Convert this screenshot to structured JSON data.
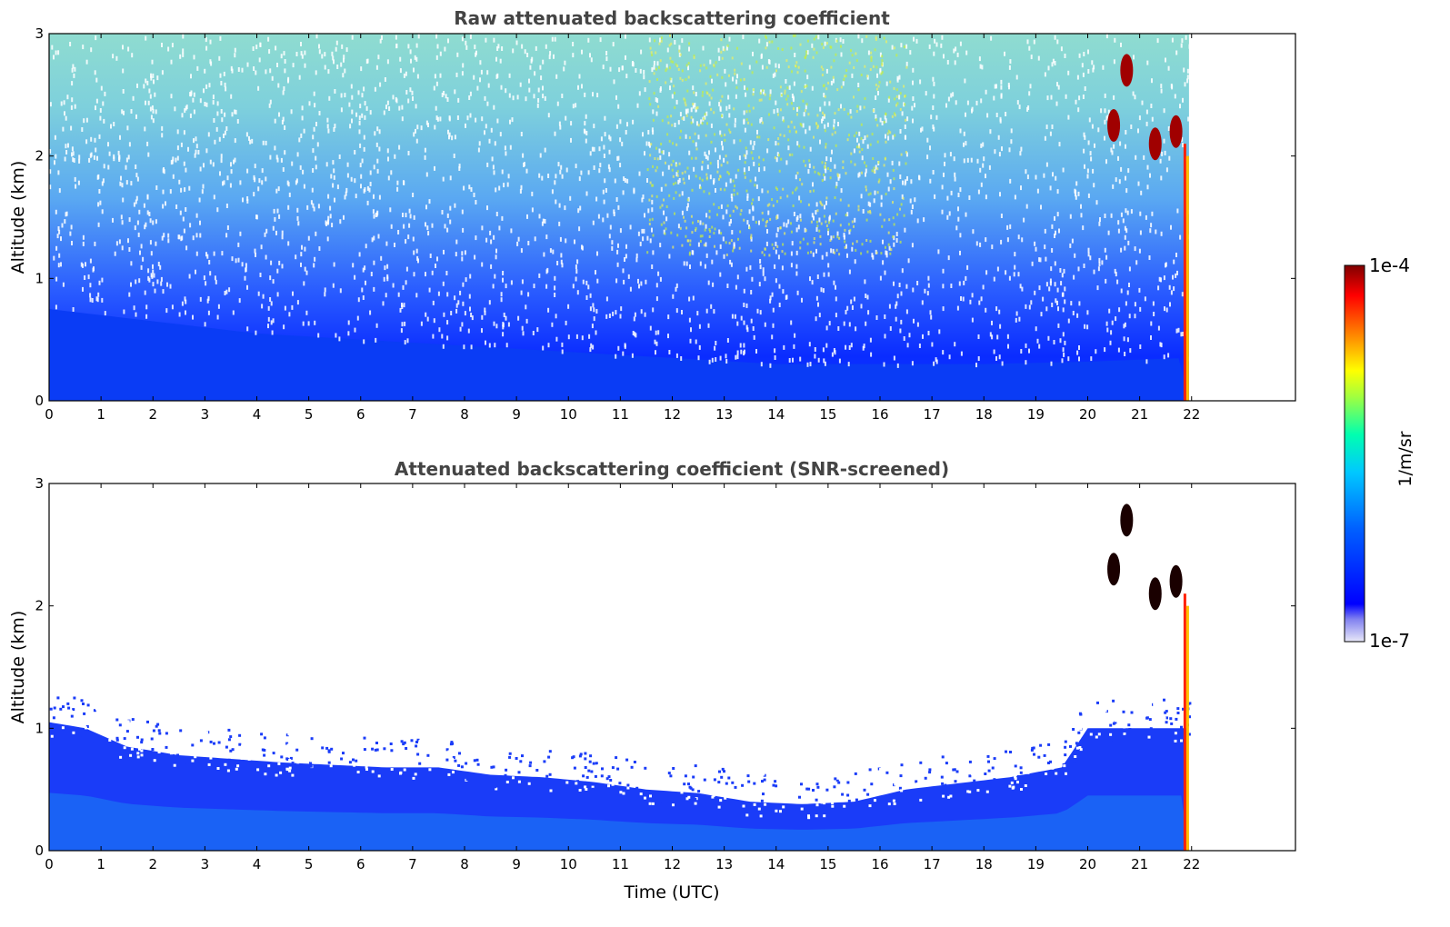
{
  "chart_data": [
    {
      "type": "heatmap",
      "title": "Raw attenuated backscattering coefficient",
      "xlabel": "",
      "ylabel": "Altitude (km)",
      "xlim": [
        0,
        24
      ],
      "ylim": [
        0,
        3
      ],
      "x_ticks": [
        "0",
        "1",
        "2",
        "3",
        "4",
        "5",
        "6",
        "7",
        "8",
        "9",
        "10",
        "11",
        "12",
        "13",
        "14",
        "15",
        "16",
        "17",
        "18",
        "19",
        "20",
        "21",
        "22"
      ],
      "y_ticks": [
        "0",
        "1",
        "2",
        "3"
      ],
      "data_end_time": 21.95,
      "boundary_layer_top": [
        {
          "x": 0,
          "y": 0.75
        },
        {
          "x": 2,
          "y": 0.65
        },
        {
          "x": 4,
          "y": 0.55
        },
        {
          "x": 6,
          "y": 0.5
        },
        {
          "x": 8,
          "y": 0.45
        },
        {
          "x": 10,
          "y": 0.4
        },
        {
          "x": 12,
          "y": 0.35
        },
        {
          "x": 14,
          "y": 0.3
        },
        {
          "x": 16,
          "y": 0.3
        },
        {
          "x": 18,
          "y": 0.3
        },
        {
          "x": 20,
          "y": 0.32
        },
        {
          "x": 21.9,
          "y": 0.35
        }
      ],
      "clouds": [
        {
          "x": 20.75,
          "y": 2.7,
          "level": 1.0
        },
        {
          "x": 20.5,
          "y": 2.25,
          "level": 1.0
        },
        {
          "x": 21.3,
          "y": 2.1,
          "level": 1.0
        },
        {
          "x": 21.7,
          "y": 2.2,
          "level": 0.95
        }
      ]
    },
    {
      "type": "heatmap",
      "title": "Attenuated backscattering coefficient (SNR-screened)",
      "xlabel": "Time (UTC)",
      "ylabel": "Altitude (km)",
      "xlim": [
        0,
        24
      ],
      "ylim": [
        0,
        3
      ],
      "x_ticks": [
        "0",
        "1",
        "2",
        "3",
        "4",
        "5",
        "6",
        "7",
        "8",
        "9",
        "10",
        "11",
        "12",
        "13",
        "14",
        "15",
        "16",
        "17",
        "18",
        "19",
        "20",
        "21",
        "22"
      ],
      "y_ticks": [
        "0",
        "1",
        "2",
        "3"
      ],
      "data_end_time": 21.95,
      "screened_signal_top": [
        {
          "x": 0,
          "y": 1.05
        },
        {
          "x": 0.7,
          "y": 1.0
        },
        {
          "x": 1.5,
          "y": 0.85
        },
        {
          "x": 2.5,
          "y": 0.78
        },
        {
          "x": 3.5,
          "y": 0.75
        },
        {
          "x": 4.5,
          "y": 0.72
        },
        {
          "x": 5.5,
          "y": 0.7
        },
        {
          "x": 6.5,
          "y": 0.68
        },
        {
          "x": 7.5,
          "y": 0.68
        },
        {
          "x": 8.5,
          "y": 0.62
        },
        {
          "x": 9.5,
          "y": 0.6
        },
        {
          "x": 10.5,
          "y": 0.56
        },
        {
          "x": 11.5,
          "y": 0.5
        },
        {
          "x": 12.5,
          "y": 0.47
        },
        {
          "x": 13.5,
          "y": 0.4
        },
        {
          "x": 14.5,
          "y": 0.38
        },
        {
          "x": 15.5,
          "y": 0.4
        },
        {
          "x": 16.5,
          "y": 0.5
        },
        {
          "x": 17.5,
          "y": 0.55
        },
        {
          "x": 18.5,
          "y": 0.6
        },
        {
          "x": 19.5,
          "y": 0.68
        },
        {
          "x": 20.0,
          "y": 1.0
        },
        {
          "x": 21.0,
          "y": 1.0
        },
        {
          "x": 21.9,
          "y": 1.0
        }
      ],
      "clouds": [
        {
          "x": 20.75,
          "y": 2.7,
          "level": 1.0
        },
        {
          "x": 20.5,
          "y": 2.3,
          "level": 1.0
        },
        {
          "x": 21.3,
          "y": 2.1,
          "level": 1.0
        },
        {
          "x": 21.7,
          "y": 2.2,
          "level": 0.95
        }
      ]
    }
  ],
  "colorbar": {
    "label": "1/m/sr",
    "max_label": "1e-4",
    "min_label": "1e-7",
    "colors": [
      "#e8e8f8",
      "#0000ff",
      "#0080ff",
      "#00c0ff",
      "#00ffc0",
      "#80ff40",
      "#ffff00",
      "#ff8000",
      "#ff0000",
      "#800000"
    ]
  }
}
